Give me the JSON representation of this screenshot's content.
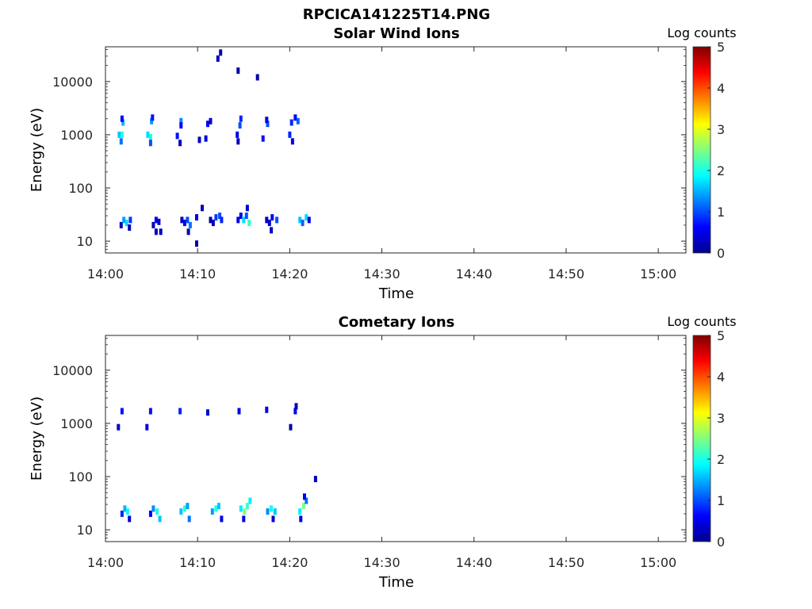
{
  "figure": {
    "title": "RPCICA141225T14.PNG"
  },
  "chart_data": [
    {
      "type": "heatmap",
      "title": "Solar Wind Ions",
      "xlabel": "Time",
      "ylabel": "Energy (eV)",
      "x_ticks": [
        "14:00",
        "14:10",
        "14:20",
        "14:30",
        "14:40",
        "14:50",
        "15:00"
      ],
      "x_range": [
        "14:00",
        "15:03"
      ],
      "y_scale": "log",
      "y_ticks": [
        "10",
        "100",
        "1000",
        "10000"
      ],
      "y_range": [
        6,
        45000
      ],
      "colorbar": {
        "label": "Log counts",
        "min": 0,
        "max": 5,
        "ticks": [
          "0",
          "1",
          "2",
          "3",
          "4",
          "5"
        ],
        "colormap": "jet"
      },
      "points": [
        {
          "t": 1.5,
          "e": 1000,
          "v": 1.6
        },
        {
          "t": 1.8,
          "e": 1000,
          "v": 2.0
        },
        {
          "t": 1.7,
          "e": 750,
          "v": 1.2
        },
        {
          "t": 1.9,
          "e": 1700,
          "v": 1.5
        },
        {
          "t": 1.8,
          "e": 2000,
          "v": 0.6
        },
        {
          "t": 4.6,
          "e": 1000,
          "v": 1.7
        },
        {
          "t": 4.9,
          "e": 900,
          "v": 2.0
        },
        {
          "t": 4.9,
          "e": 700,
          "v": 1.0
        },
        {
          "t": 5.0,
          "e": 1800,
          "v": 1.4
        },
        {
          "t": 5.1,
          "e": 2100,
          "v": 0.7
        },
        {
          "t": 7.8,
          "e": 950,
          "v": 0.7
        },
        {
          "t": 8.1,
          "e": 700,
          "v": 0.3
        },
        {
          "t": 8.2,
          "e": 1800,
          "v": 1.3
        },
        {
          "t": 8.2,
          "e": 1500,
          "v": 0.6
        },
        {
          "t": 10.2,
          "e": 800,
          "v": 0.3
        },
        {
          "t": 10.9,
          "e": 850,
          "v": 0.5
        },
        {
          "t": 11.1,
          "e": 1600,
          "v": 0.6
        },
        {
          "t": 11.4,
          "e": 1800,
          "v": 0.4
        },
        {
          "t": 14.3,
          "e": 1000,
          "v": 0.5
        },
        {
          "t": 14.4,
          "e": 750,
          "v": 0.3
        },
        {
          "t": 14.6,
          "e": 1500,
          "v": 1.0
        },
        {
          "t": 14.7,
          "e": 2000,
          "v": 0.8
        },
        {
          "t": 17.1,
          "e": 850,
          "v": 0.7
        },
        {
          "t": 17.6,
          "e": 1600,
          "v": 1.0
        },
        {
          "t": 17.5,
          "e": 1900,
          "v": 0.5
        },
        {
          "t": 20.0,
          "e": 1000,
          "v": 0.8
        },
        {
          "t": 20.3,
          "e": 750,
          "v": 0.5
        },
        {
          "t": 20.2,
          "e": 1700,
          "v": 0.8
        },
        {
          "t": 20.6,
          "e": 2100,
          "v": 0.6
        },
        {
          "t": 20.9,
          "e": 1800,
          "v": 1.1
        },
        {
          "t": 12.2,
          "e": 27000,
          "v": 0.3
        },
        {
          "t": 12.5,
          "e": 35000,
          "v": 0.3
        },
        {
          "t": 14.4,
          "e": 16000,
          "v": 0.2
        },
        {
          "t": 16.5,
          "e": 12000,
          "v": 0.2
        },
        {
          "t": 1.7,
          "e": 20,
          "v": 0.3
        },
        {
          "t": 2.0,
          "e": 25,
          "v": 1.4
        },
        {
          "t": 2.3,
          "e": 22,
          "v": 1.7
        },
        {
          "t": 2.6,
          "e": 18,
          "v": 0.3
        },
        {
          "t": 2.7,
          "e": 25,
          "v": 0.9
        },
        {
          "t": 5.2,
          "e": 20,
          "v": 0.3
        },
        {
          "t": 5.5,
          "e": 25,
          "v": 0.5
        },
        {
          "t": 5.5,
          "e": 15,
          "v": 0.3
        },
        {
          "t": 5.8,
          "e": 23,
          "v": 0.4
        },
        {
          "t": 6.0,
          "e": 15,
          "v": 0.3
        },
        {
          "t": 8.3,
          "e": 25,
          "v": 0.3
        },
        {
          "t": 8.6,
          "e": 22,
          "v": 0.6
        },
        {
          "t": 8.9,
          "e": 25,
          "v": 1.0
        },
        {
          "t": 9.2,
          "e": 20,
          "v": 1.2
        },
        {
          "t": 9.0,
          "e": 15,
          "v": 0.3
        },
        {
          "t": 9.9,
          "e": 9,
          "v": 0.2
        },
        {
          "t": 9.9,
          "e": 28,
          "v": 0.5
        },
        {
          "t": 10.5,
          "e": 42,
          "v": 0.2
        },
        {
          "t": 11.4,
          "e": 25,
          "v": 0.2
        },
        {
          "t": 11.7,
          "e": 22,
          "v": 0.3
        },
        {
          "t": 12.0,
          "e": 28,
          "v": 0.9
        },
        {
          "t": 12.4,
          "e": 30,
          "v": 1.0
        },
        {
          "t": 12.6,
          "e": 25,
          "v": 0.8
        },
        {
          "t": 14.4,
          "e": 25,
          "v": 0.5
        },
        {
          "t": 14.7,
          "e": 30,
          "v": 0.5
        },
        {
          "t": 15.0,
          "e": 25,
          "v": 1.7
        },
        {
          "t": 15.3,
          "e": 30,
          "v": 1.0
        },
        {
          "t": 15.6,
          "e": 22,
          "v": 2.1
        },
        {
          "t": 15.4,
          "e": 42,
          "v": 0.4
        },
        {
          "t": 17.5,
          "e": 25,
          "v": 0.3
        },
        {
          "t": 17.8,
          "e": 22,
          "v": 0.4
        },
        {
          "t": 18.0,
          "e": 16,
          "v": 0.3
        },
        {
          "t": 18.1,
          "e": 28,
          "v": 0.6
        },
        {
          "t": 18.6,
          "e": 25,
          "v": 1.0
        },
        {
          "t": 21.1,
          "e": 25,
          "v": 1.6
        },
        {
          "t": 21.4,
          "e": 22,
          "v": 1.1
        },
        {
          "t": 21.8,
          "e": 28,
          "v": 1.7
        },
        {
          "t": 22.1,
          "e": 25,
          "v": 0.5
        }
      ]
    },
    {
      "type": "heatmap",
      "title": "Cometary Ions",
      "xlabel": "Time",
      "ylabel": "Energy (eV)",
      "x_ticks": [
        "14:00",
        "14:10",
        "14:20",
        "14:30",
        "14:40",
        "14:50",
        "15:00"
      ],
      "x_range": [
        "14:00",
        "15:03"
      ],
      "y_scale": "log",
      "y_ticks": [
        "10",
        "100",
        "1000",
        "10000"
      ],
      "y_range": [
        6,
        45000
      ],
      "colorbar": {
        "label": "Log counts",
        "min": 0,
        "max": 5,
        "ticks": [
          "0",
          "1",
          "2",
          "3",
          "4",
          "5"
        ],
        "colormap": "jet"
      },
      "points": [
        {
          "t": 1.4,
          "e": 850,
          "v": 0.4
        },
        {
          "t": 1.8,
          "e": 1700,
          "v": 0.7
        },
        {
          "t": 4.5,
          "e": 850,
          "v": 0.5
        },
        {
          "t": 4.9,
          "e": 1700,
          "v": 0.7
        },
        {
          "t": 8.1,
          "e": 1700,
          "v": 0.8
        },
        {
          "t": 11.1,
          "e": 1600,
          "v": 0.4
        },
        {
          "t": 14.5,
          "e": 1700,
          "v": 0.5
        },
        {
          "t": 17.5,
          "e": 1800,
          "v": 0.5
        },
        {
          "t": 20.1,
          "e": 850,
          "v": 0.2
        },
        {
          "t": 20.6,
          "e": 1700,
          "v": 0.6
        },
        {
          "t": 20.7,
          "e": 2100,
          "v": 0.3
        },
        {
          "t": 22.8,
          "e": 90,
          "v": 0.3
        },
        {
          "t": 1.8,
          "e": 20,
          "v": 0.8
        },
        {
          "t": 2.1,
          "e": 25,
          "v": 1.5
        },
        {
          "t": 2.4,
          "e": 22,
          "v": 1.9
        },
        {
          "t": 2.6,
          "e": 16,
          "v": 0.4
        },
        {
          "t": 4.9,
          "e": 20,
          "v": 0.6
        },
        {
          "t": 5.2,
          "e": 25,
          "v": 1.3
        },
        {
          "t": 5.6,
          "e": 22,
          "v": 2.0
        },
        {
          "t": 5.9,
          "e": 16,
          "v": 1.6
        },
        {
          "t": 8.2,
          "e": 22,
          "v": 1.6
        },
        {
          "t": 8.6,
          "e": 25,
          "v": 2.1
        },
        {
          "t": 8.9,
          "e": 28,
          "v": 1.4
        },
        {
          "t": 9.1,
          "e": 16,
          "v": 1.2
        },
        {
          "t": 11.6,
          "e": 22,
          "v": 1.4
        },
        {
          "t": 12.0,
          "e": 25,
          "v": 2.0
        },
        {
          "t": 12.3,
          "e": 28,
          "v": 1.6
        },
        {
          "t": 12.6,
          "e": 16,
          "v": 0.5
        },
        {
          "t": 14.7,
          "e": 25,
          "v": 1.8
        },
        {
          "t": 15.1,
          "e": 22,
          "v": 2.5
        },
        {
          "t": 15.4,
          "e": 28,
          "v": 2.2
        },
        {
          "t": 15.7,
          "e": 35,
          "v": 1.8
        },
        {
          "t": 15.0,
          "e": 16,
          "v": 0.5
        },
        {
          "t": 17.6,
          "e": 22,
          "v": 1.3
        },
        {
          "t": 18.0,
          "e": 25,
          "v": 1.9
        },
        {
          "t": 18.4,
          "e": 22,
          "v": 1.6
        },
        {
          "t": 18.2,
          "e": 16,
          "v": 0.4
        },
        {
          "t": 21.1,
          "e": 22,
          "v": 1.8
        },
        {
          "t": 21.5,
          "e": 28,
          "v": 2.5
        },
        {
          "t": 21.8,
          "e": 35,
          "v": 1.2
        },
        {
          "t": 21.6,
          "e": 42,
          "v": 0.5
        },
        {
          "t": 21.2,
          "e": 16,
          "v": 0.5
        }
      ]
    }
  ]
}
